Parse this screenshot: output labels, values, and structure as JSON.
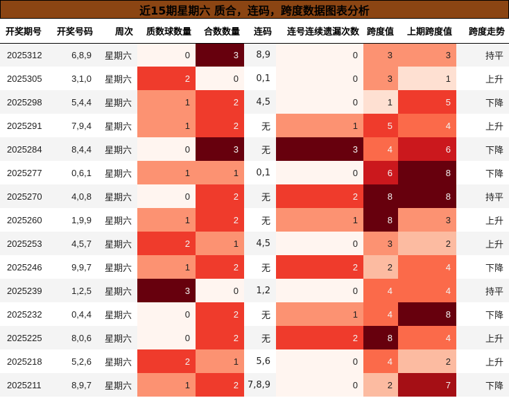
{
  "title": "近15期星期六 质合，连码，跨度数据图表分析",
  "columns": [
    "开奖期号",
    "开奖号码",
    "周次",
    "质数球数量",
    "合数数量",
    "连码",
    "连号连续遗漏次数",
    "跨度值",
    "上期跨度值",
    "跨度走势"
  ],
  "palette": {
    "title_bg": "#8b4513",
    "heat_0": "#fff5f0",
    "heat_scale": [
      "#fff5f0",
      "#fee0d2",
      "#fcbba1",
      "#fc9272",
      "#fb6a4a",
      "#ef3b2c",
      "#cb181d",
      "#a50f15",
      "#67000d"
    ]
  },
  "rows": [
    {
      "issue": "2025312",
      "numbers": "6,8,9",
      "weekday": "星期六",
      "prime": "0",
      "composite": "3",
      "consec": "8,9",
      "miss": "0",
      "span": "3",
      "prev_span": "3",
      "trend": "持平"
    },
    {
      "issue": "2025305",
      "numbers": "3,1,0",
      "weekday": "星期六",
      "prime": "2",
      "composite": "0",
      "consec": "0,1",
      "miss": "0",
      "span": "3",
      "prev_span": "1",
      "trend": "上升"
    },
    {
      "issue": "2025298",
      "numbers": "5,4,4",
      "weekday": "星期六",
      "prime": "1",
      "composite": "2",
      "consec": "4,5",
      "miss": "0",
      "span": "1",
      "prev_span": "5",
      "trend": "下降"
    },
    {
      "issue": "2025291",
      "numbers": "7,9,4",
      "weekday": "星期六",
      "prime": "1",
      "composite": "2",
      "consec": "无",
      "miss": "1",
      "span": "5",
      "prev_span": "4",
      "trend": "上升"
    },
    {
      "issue": "2025284",
      "numbers": "8,4,4",
      "weekday": "星期六",
      "prime": "0",
      "composite": "3",
      "consec": "无",
      "miss": "3",
      "span": "4",
      "prev_span": "6",
      "trend": "下降"
    },
    {
      "issue": "2025277",
      "numbers": "0,6,1",
      "weekday": "星期六",
      "prime": "1",
      "composite": "1",
      "consec": "0,1",
      "miss": "0",
      "span": "6",
      "prev_span": "8",
      "trend": "下降"
    },
    {
      "issue": "2025270",
      "numbers": "4,0,8",
      "weekday": "星期六",
      "prime": "0",
      "composite": "2",
      "consec": "无",
      "miss": "2",
      "span": "8",
      "prev_span": "8",
      "trend": "持平"
    },
    {
      "issue": "2025260",
      "numbers": "1,9,9",
      "weekday": "星期六",
      "prime": "1",
      "composite": "2",
      "consec": "无",
      "miss": "1",
      "span": "8",
      "prev_span": "3",
      "trend": "上升"
    },
    {
      "issue": "2025253",
      "numbers": "4,5,7",
      "weekday": "星期六",
      "prime": "2",
      "composite": "1",
      "consec": "4,5",
      "miss": "0",
      "span": "3",
      "prev_span": "2",
      "trend": "上升"
    },
    {
      "issue": "2025246",
      "numbers": "9,9,7",
      "weekday": "星期六",
      "prime": "1",
      "composite": "2",
      "consec": "无",
      "miss": "2",
      "span": "2",
      "prev_span": "4",
      "trend": "下降"
    },
    {
      "issue": "2025239",
      "numbers": "1,2,5",
      "weekday": "星期六",
      "prime": "3",
      "composite": "0",
      "consec": "1,2",
      "miss": "0",
      "span": "4",
      "prev_span": "4",
      "trend": "持平"
    },
    {
      "issue": "2025232",
      "numbers": "0,4,4",
      "weekday": "星期六",
      "prime": "0",
      "composite": "2",
      "consec": "无",
      "miss": "1",
      "span": "4",
      "prev_span": "8",
      "trend": "下降"
    },
    {
      "issue": "2025225",
      "numbers": "8,0,6",
      "weekday": "星期六",
      "prime": "0",
      "composite": "2",
      "consec": "无",
      "miss": "2",
      "span": "8",
      "prev_span": "4",
      "trend": "上升"
    },
    {
      "issue": "2025218",
      "numbers": "5,2,6",
      "weekday": "星期六",
      "prime": "2",
      "composite": "1",
      "consec": "5,6",
      "miss": "0",
      "span": "4",
      "prev_span": "2",
      "trend": "上升"
    },
    {
      "issue": "2025211",
      "numbers": "8,9,7",
      "weekday": "星期六",
      "prime": "1",
      "composite": "2",
      "consec": "7,8,9",
      "miss": "0",
      "span": "2",
      "prev_span": "7",
      "trend": "下降"
    }
  ]
}
